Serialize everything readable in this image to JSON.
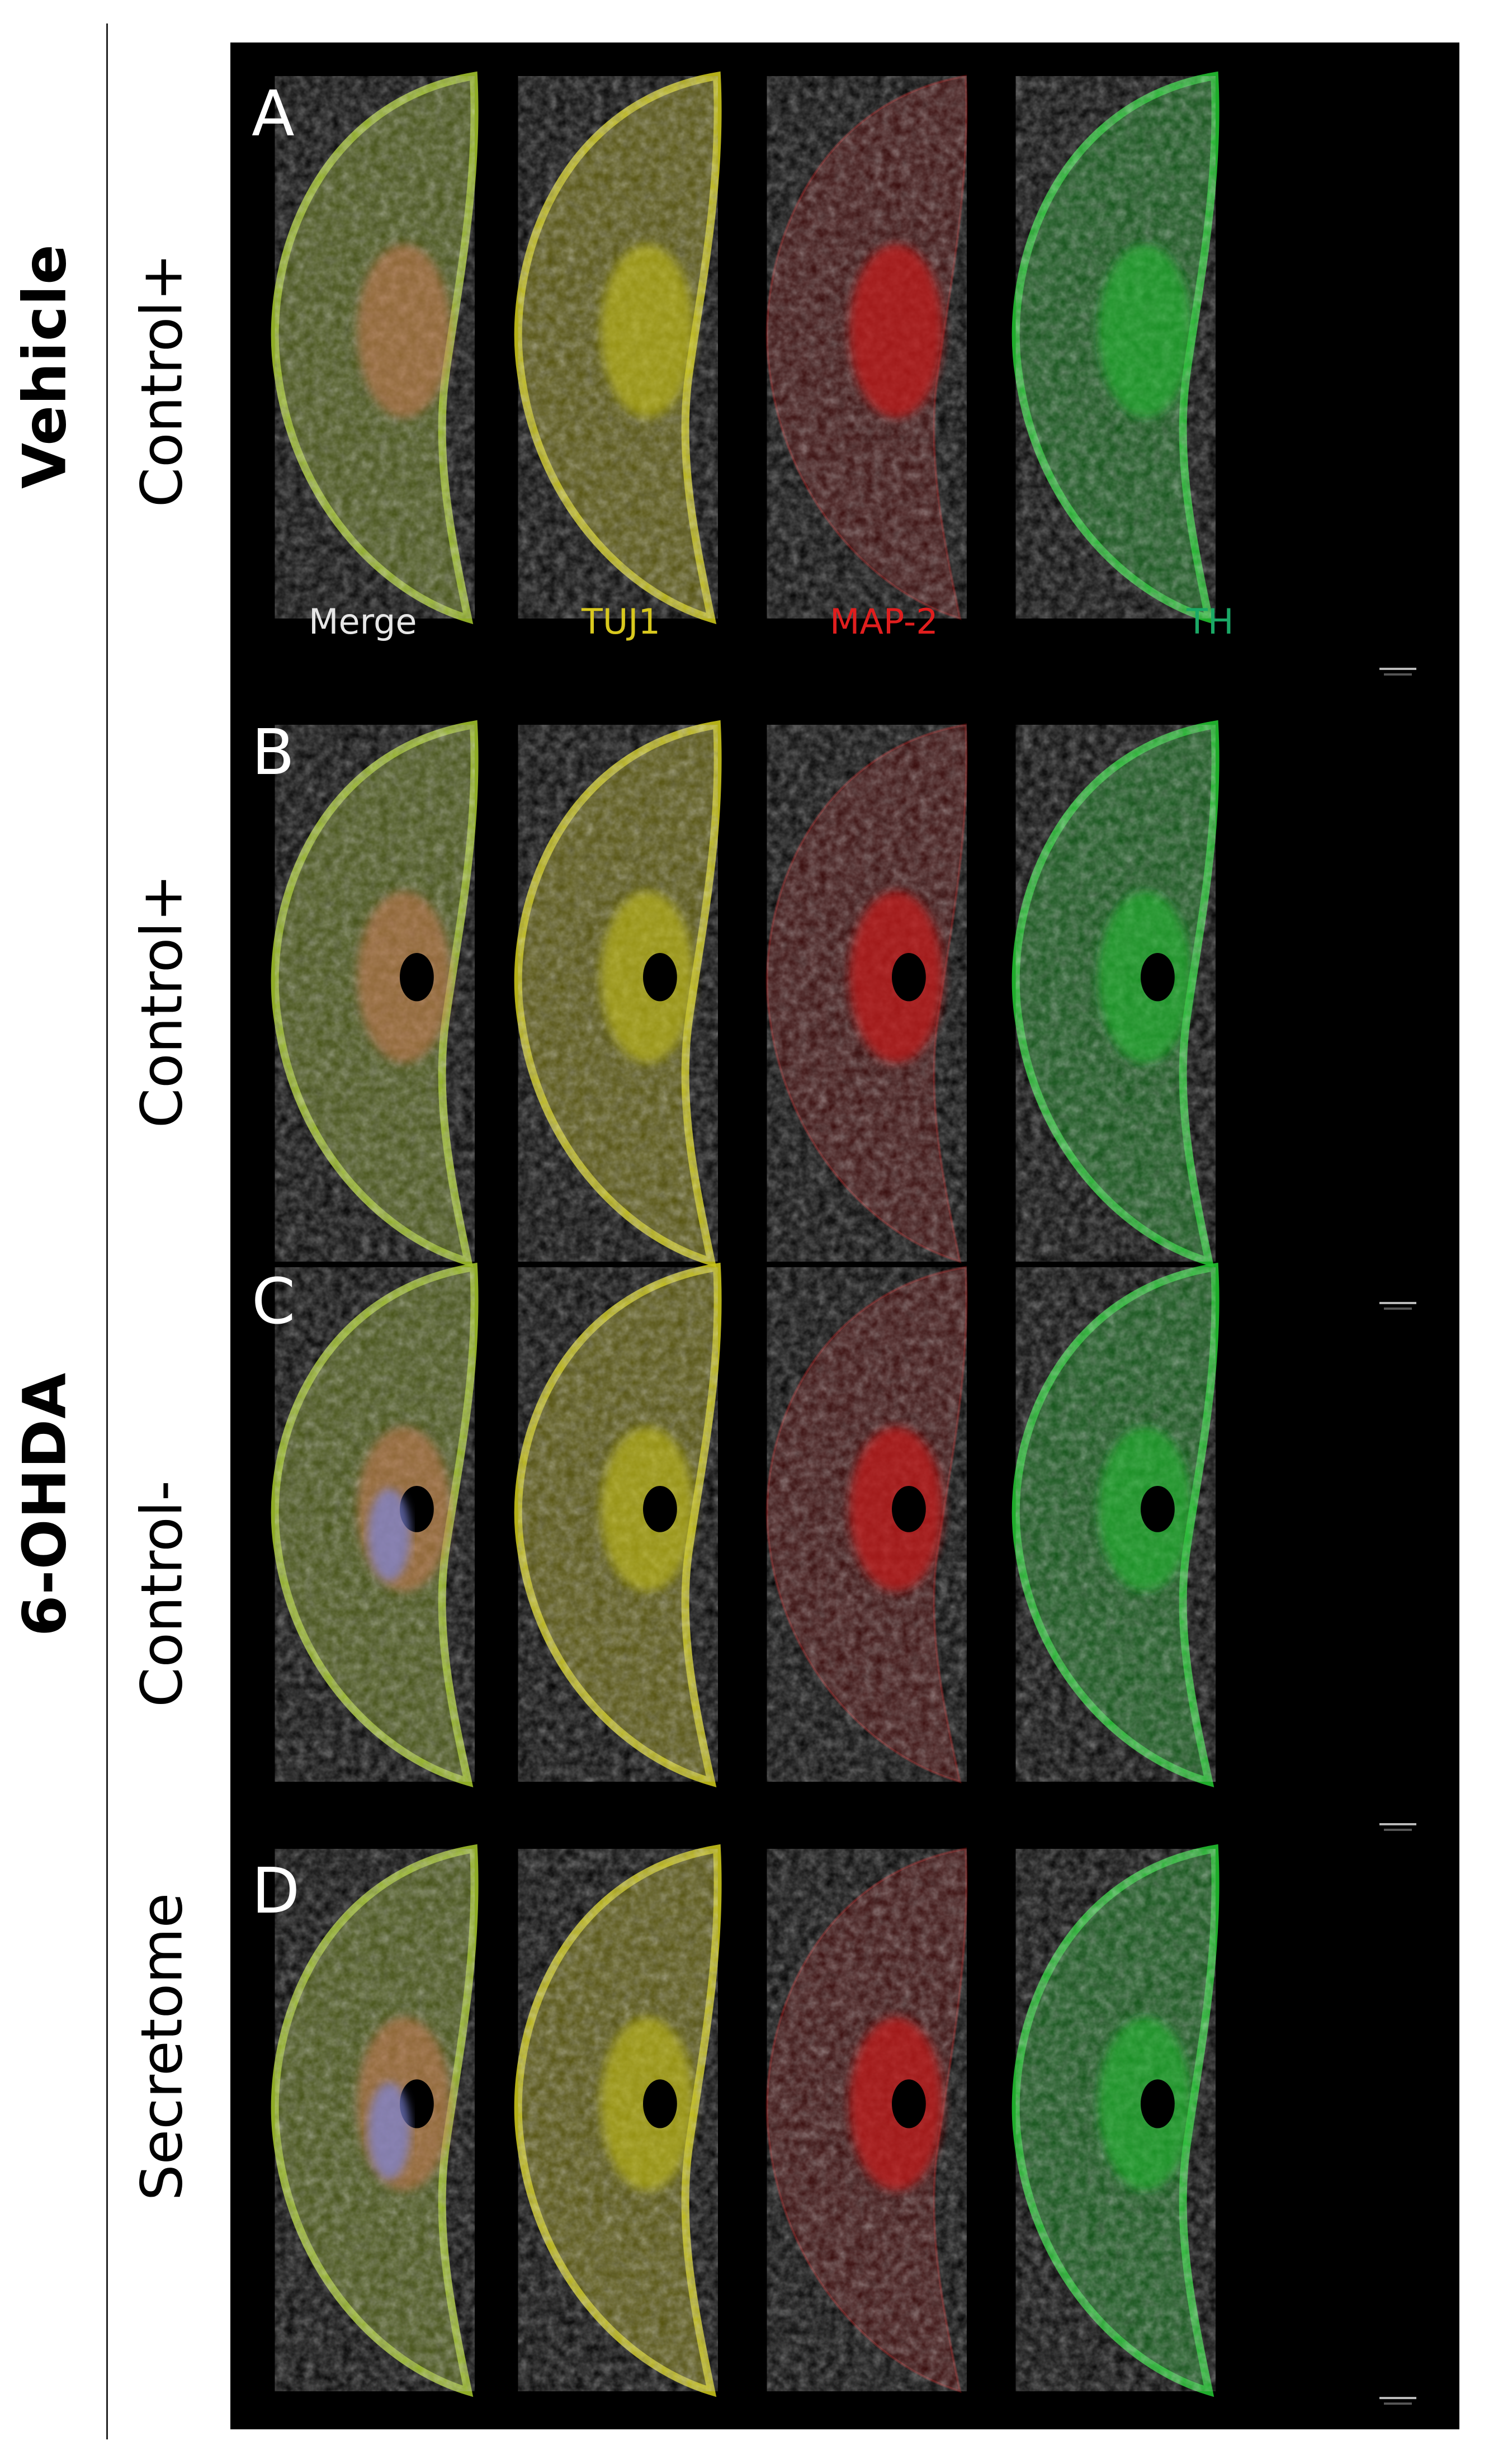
{
  "groups": {
    "vehicle": "Vehicle",
    "ohda": "6-OHDA"
  },
  "rows": [
    {
      "letter": "A",
      "condition": "Control+"
    },
    {
      "letter": "B",
      "condition": "Control+"
    },
    {
      "letter": "C",
      "condition": "Control-"
    },
    {
      "letter": "D",
      "condition": "Secretome"
    }
  ],
  "channels": [
    {
      "label": "Merge",
      "color": "#e6e6e6"
    },
    {
      "label": "TUJ1",
      "color": "#d8c81e"
    },
    {
      "label": "MAP-2",
      "color": "#e01e1e"
    },
    {
      "label": "TH",
      "color": "#1aa866"
    }
  ],
  "colors": {
    "background": "#000000",
    "merge": "#9fbf2a",
    "tuj1": "#c8c21a",
    "map2": "#c01818",
    "th": "#22c030"
  }
}
